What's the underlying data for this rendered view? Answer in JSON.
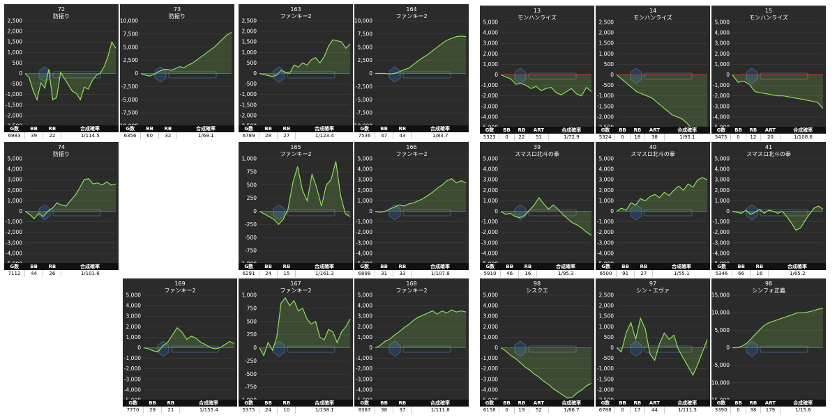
{
  "colors": {
    "panel_bg": "#2b2b2b",
    "line": "#8fe05a",
    "fill": "#8fe05a",
    "zero_line": "#c0392b",
    "grid": "#444444",
    "header_bg": "#111111"
  },
  "axes": {
    "a2500": {
      "ticks": [
        2500,
        2000,
        1500,
        1000,
        500,
        0,
        -500,
        -1000,
        -1500,
        -2000,
        -2500
      ],
      "labels": [
        "2,500",
        "2,000",
        "1,500",
        "1,000",
        "500",
        "0",
        "-500",
        "-1,000",
        "-1,500",
        "-2,000",
        "-2,500"
      ]
    },
    "a10000": {
      "ticks": [
        10000,
        7500,
        5000,
        2500,
        0,
        -2500,
        -5000,
        -7500,
        -10000
      ],
      "labels": [
        "10,000",
        "7,500",
        "5,000",
        "2,500",
        "0",
        "-2,500",
        "-5,000",
        "-7,500",
        "-10,000"
      ]
    },
    "a5000": {
      "ticks": [
        5000,
        4000,
        3000,
        2000,
        1000,
        0,
        -1000,
        -2000,
        -3000,
        -4000,
        -5000
      ],
      "labels": [
        "5,000",
        "4,000",
        "3,000",
        "2,000",
        "1,000",
        "0",
        "-1,000",
        "-2,000",
        "-3,000",
        "-4,000",
        "-5,000"
      ]
    },
    "a1000": {
      "ticks": [
        1000,
        750,
        500,
        250,
        0,
        -250,
        -500,
        -750,
        -1000
      ],
      "labels": [
        "1,000",
        "750",
        "500",
        "250",
        "0",
        "-250",
        "-500",
        "-750",
        "-1,000"
      ]
    },
    "a15000": {
      "ticks": [
        15000,
        10000,
        5000,
        0,
        -5000,
        -10000,
        -15000
      ],
      "labels": [
        "15,000",
        "10,000",
        "5,000",
        "0",
        "-5,000",
        "-10,000",
        "-15,000"
      ]
    }
  },
  "chart_data": [
    {
      "type": "area",
      "axis": "a2500",
      "number": "72",
      "name": "防振り",
      "values": [
        0,
        -200,
        -800,
        -1250,
        -450,
        -700,
        200,
        -1250,
        -1150,
        50,
        -250,
        -550,
        -850,
        -950,
        -1250,
        -650,
        -750,
        -350,
        -100,
        0,
        300,
        800,
        1500,
        1200
      ],
      "headers": [
        "G数",
        "BB",
        "RB",
        "合成確率"
      ],
      "stats": [
        "6983",
        "39",
        "22",
        "1/114.5"
      ]
    },
    {
      "type": "area",
      "axis": "a10000",
      "number": "73",
      "name": "防振り",
      "values": [
        0,
        -300,
        -500,
        -200,
        300,
        700,
        800,
        600,
        900,
        1300,
        1100,
        1600,
        2000,
        2600,
        3200,
        3800,
        4400,
        5000,
        5800,
        6600,
        7400,
        7800
      ],
      "headers": [
        "G数",
        "BB",
        "RB",
        "合成確率"
      ],
      "stats": [
        "6356",
        "60",
        "32",
        "1/69.1"
      ]
    },
    {
      "type": "area",
      "axis": "a2500",
      "number": "163",
      "name": "ファンキー2",
      "values": [
        0,
        -50,
        -100,
        -150,
        -80,
        150,
        50,
        0,
        400,
        300,
        500,
        400,
        650,
        750,
        500,
        800,
        1300,
        1600,
        1550,
        1500,
        1200,
        1400
      ],
      "headers": [
        "G数",
        "BB",
        "RB",
        "合成確率"
      ],
      "stats": [
        "6789",
        "28",
        "27",
        "1/123.4"
      ]
    },
    {
      "type": "area",
      "axis": "a10000",
      "number": "164",
      "name": "ファンキー2",
      "values": [
        0,
        0,
        0,
        -100,
        0,
        300,
        700,
        1000,
        1700,
        2400,
        3000,
        3600,
        4300,
        5000,
        5700,
        6300,
        6700,
        7000,
        7100,
        7000
      ],
      "headers": [
        "G数",
        "BB",
        "RB",
        "合成確率"
      ],
      "stats": [
        "7536",
        "47",
        "43",
        "1/83.7"
      ]
    },
    {
      "type": "area",
      "axis": "a5000",
      "number": "13",
      "name": "モンハンライズ",
      "values": [
        0,
        -200,
        -400,
        -900,
        -800,
        -1000,
        -1300,
        -1100,
        -1500,
        -1300,
        -1200,
        -1700,
        -1900,
        -1600,
        -1300,
        -1800,
        -2000,
        -1200,
        -1600
      ],
      "headers": [
        "G数",
        "BB",
        "RB",
        "ART",
        "合成確率"
      ],
      "stats": [
        "5323",
        "0",
        "22",
        "51",
        "1/72.9"
      ]
    },
    {
      "type": "area",
      "axis": "a2500",
      "number": "14",
      "name": "モンハンライズ",
      "values": [
        0,
        -200,
        -400,
        -600,
        -800,
        -900,
        -1000,
        -1100,
        -1300,
        -1500,
        -1700,
        -1900,
        -2000,
        -2100,
        -2300,
        -2600,
        -3100,
        -3400,
        -3500
      ],
      "headers": [
        "G数",
        "BB",
        "RB",
        "ART",
        "合成確率"
      ],
      "stats": [
        "5324",
        "0",
        "18",
        "38",
        "1/95.1"
      ]
    },
    {
      "type": "area",
      "axis": "a5000",
      "number": "15",
      "name": "モンハンライズ",
      "values": [
        0,
        -700,
        -600,
        -900,
        -1600,
        -1700,
        -1800,
        -1900,
        -2000,
        -2000,
        -2100,
        -2200,
        -2300,
        -2400,
        -2500,
        -2600,
        -3200
      ],
      "headers": [
        "G数",
        "BB",
        "RB",
        "ART",
        "合成確率"
      ],
      "stats": [
        "3475",
        "0",
        "12",
        "20",
        "1/108.6"
      ]
    },
    {
      "type": "area",
      "axis": "a5000",
      "number": "74",
      "name": "防振り",
      "values": [
        0,
        -300,
        -700,
        -200,
        -500,
        0,
        300,
        800,
        600,
        500,
        1000,
        1500,
        2200,
        3000,
        3100,
        2600,
        2700,
        2500,
        2800,
        2500,
        2600
      ],
      "headers": [
        "G数",
        "BB",
        "RB",
        "合成確率"
      ],
      "stats": [
        "7112",
        "44",
        "26",
        "1/101.6"
      ]
    },
    {
      "type": "area",
      "axis": "a1000",
      "number": "165",
      "name": "ファンキー2",
      "values": [
        0,
        -50,
        -100,
        -150,
        -250,
        -150,
        50,
        550,
        850,
        400,
        200,
        700,
        450,
        100,
        500,
        600,
        950,
        300,
        -50,
        -100
      ],
      "headers": [
        "G数",
        "BB",
        "RB",
        "合成確率"
      ],
      "stats": [
        "6291",
        "24",
        "15",
        "1/161.3"
      ]
    },
    {
      "type": "area",
      "axis": "a5000",
      "number": "166",
      "name": "ファンキー2",
      "values": [
        0,
        -100,
        0,
        200,
        400,
        600,
        500,
        700,
        800,
        1000,
        1200,
        1500,
        1800,
        2200,
        2500,
        2900,
        3100,
        2700,
        2900,
        2700
      ],
      "headers": [
        "G数",
        "BB",
        "RB",
        "合成確率"
      ],
      "stats": [
        "6898",
        "31",
        "33",
        "1/107.8"
      ]
    },
    {
      "type": "area",
      "axis": "a5000",
      "number": "39",
      "name": "スマスロ北斗の拳",
      "values": [
        0,
        -300,
        -200,
        -500,
        -600,
        -400,
        100,
        600,
        1300,
        700,
        200,
        600,
        200,
        -300,
        -700,
        -1100,
        -1300,
        -1600,
        -2000,
        -2300
      ],
      "headers": [
        "G数",
        "BB",
        "RB",
        "合成確率"
      ],
      "stats": [
        "5910",
        "46",
        "16",
        "1/95.3"
      ]
    },
    {
      "type": "area",
      "axis": "a5000",
      "number": "40",
      "name": "スマスロ北斗の拳",
      "values": [
        0,
        300,
        100,
        800,
        600,
        1200,
        1000,
        1400,
        1600,
        1300,
        1800,
        1500,
        2000,
        2400,
        2000,
        2600,
        2300,
        3000,
        3200,
        3000
      ],
      "headers": [
        "G数",
        "BB",
        "RB",
        "合成確率"
      ],
      "stats": [
        "6500",
        "91",
        "27",
        "1/55.1"
      ]
    },
    {
      "type": "area",
      "axis": "a5000",
      "number": "41",
      "name": "スマスロ北斗の拳",
      "values": [
        0,
        -100,
        -200,
        100,
        -300,
        -100,
        200,
        -200,
        100,
        0,
        -200,
        0,
        -500,
        -1100,
        -1800,
        -1600,
        -900,
        -300,
        300,
        500,
        200
      ],
      "headers": [
        "G数",
        "BB",
        "RB",
        "合成確率"
      ],
      "stats": [
        "5346",
        "66",
        "16",
        "1/65.2"
      ]
    },
    {
      "type": "area",
      "axis": "a5000",
      "number": "169",
      "name": "ファンキー2",
      "values": [
        0,
        -100,
        -300,
        -400,
        200,
        500,
        1200,
        1900,
        1500,
        800,
        1100,
        900,
        500,
        300,
        0,
        -100,
        0,
        300,
        600,
        400
      ],
      "headers": [
        "G数",
        "BB",
        "RB",
        "合成確率"
      ],
      "stats": [
        "7770",
        "29",
        "21",
        "1/155.4"
      ]
    },
    {
      "type": "area",
      "axis": "a1000",
      "number": "167",
      "name": "ファンキー2",
      "values": [
        0,
        -150,
        100,
        -50,
        200,
        850,
        950,
        800,
        900,
        700,
        750,
        550,
        450,
        500,
        200,
        150,
        350,
        300,
        100,
        300,
        400,
        550
      ],
      "headers": [
        "G数",
        "BB",
        "RB",
        "合成確率"
      ],
      "stats": [
        "5375",
        "24",
        "10",
        "1/158.1"
      ]
    },
    {
      "type": "area",
      "axis": "a5000",
      "number": "168",
      "name": "ファンキー2",
      "values": [
        0,
        200,
        600,
        800,
        1200,
        1500,
        1900,
        2200,
        2600,
        2900,
        3100,
        3300,
        3500,
        3200,
        3500,
        3300,
        3600,
        3400,
        3500,
        3400
      ],
      "headers": [
        "G数",
        "BB",
        "RB",
        "合成確率"
      ],
      "stats": [
        "8387",
        "38",
        "37",
        "1/111.8"
      ]
    },
    {
      "type": "area",
      "axis": "a5000",
      "number": "98",
      "name": "シスクエ",
      "values": [
        0,
        -300,
        -700,
        -1000,
        -1400,
        -1800,
        -2100,
        -2500,
        -2800,
        -3200,
        -3500,
        -3900,
        -4200,
        -4500,
        -4800,
        -4700,
        -4300,
        -4000,
        -3600,
        -3400
      ],
      "headers": [
        "G数",
        "BB",
        "RB",
        "ART",
        "合成確率"
      ],
      "stats": [
        "6158",
        "0",
        "19",
        "52",
        "1/86.7"
      ]
    },
    {
      "type": "area",
      "axis": "a2500",
      "number": "97",
      "name": "シン・エヴァ",
      "values": [
        0,
        -200,
        700,
        1200,
        400,
        1400,
        900,
        -300,
        -600,
        200,
        700,
        400,
        600,
        -100,
        -500,
        -900,
        -1300,
        -800,
        -200,
        400
      ],
      "headers": [
        "G数",
        "BB",
        "RB",
        "ART",
        "合成確率"
      ],
      "stats": [
        "6788",
        "0",
        "17",
        "44",
        "1/111.3"
      ]
    },
    {
      "type": "area",
      "axis": "a15000",
      "number": "98",
      "name": "シンフォ正義",
      "values": [
        0,
        0,
        500,
        1500,
        3000,
        4500,
        6000,
        7000,
        7500,
        8000,
        8500,
        9000,
        9500,
        10000,
        10000,
        10200,
        10500,
        11000,
        11200
      ],
      "headers": [
        "G数",
        "BB",
        "RB",
        "ART",
        "合成確率"
      ],
      "stats": [
        "3390",
        "0",
        "38",
        "179",
        "1/15.6"
      ]
    }
  ]
}
